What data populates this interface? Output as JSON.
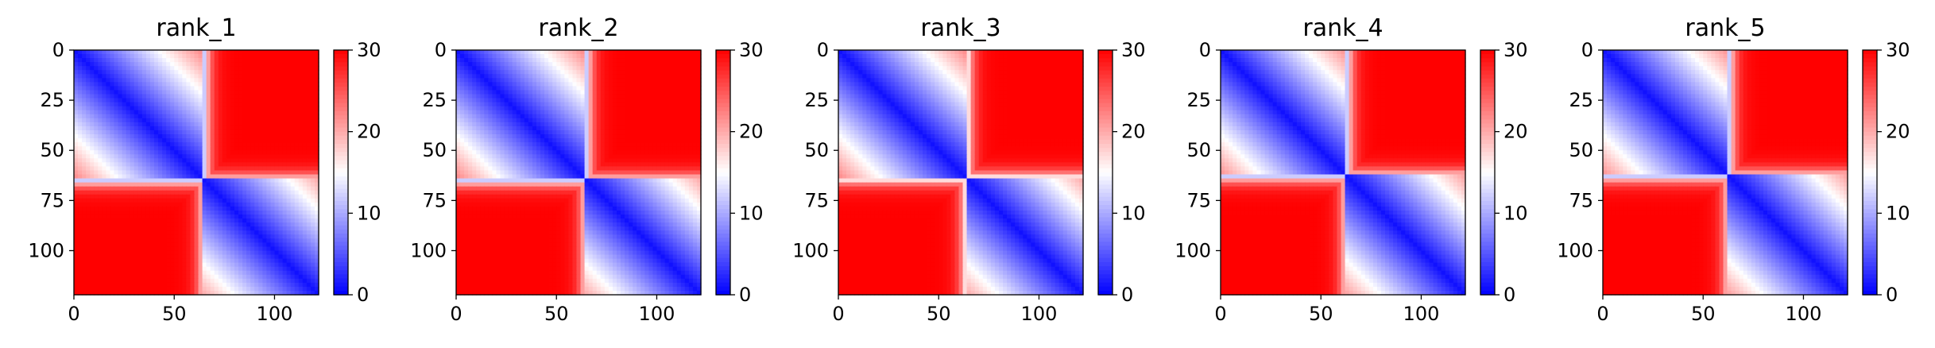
{
  "chart_data": [
    {
      "type": "heatmap",
      "title": "rank_1",
      "n": 122,
      "boundary": 65,
      "xlim": [
        0,
        122
      ],
      "ylim": [
        122,
        0
      ],
      "xticks": [
        0,
        50,
        100
      ],
      "yticks": [
        0,
        25,
        50,
        75,
        100
      ],
      "colorbar": {
        "min": 0,
        "max": 30,
        "ticks": [
          0,
          10,
          20,
          30
        ]
      },
      "colormap": [
        "#0000ff",
        "#ffffff",
        "#ff0000"
      ]
    },
    {
      "type": "heatmap",
      "title": "rank_2",
      "n": 122,
      "boundary": 65,
      "xlim": [
        0,
        122
      ],
      "ylim": [
        122,
        0
      ],
      "xticks": [
        0,
        50,
        100
      ],
      "yticks": [
        0,
        25,
        50,
        75,
        100
      ],
      "colorbar": {
        "min": 0,
        "max": 30,
        "ticks": [
          0,
          10,
          20,
          30
        ]
      },
      "colormap": [
        "#0000ff",
        "#ffffff",
        "#ff0000"
      ]
    },
    {
      "type": "heatmap",
      "title": "rank_3",
      "n": 122,
      "boundary": 64,
      "xlim": [
        0,
        122
      ],
      "ylim": [
        122,
        0
      ],
      "xticks": [
        0,
        50,
        100
      ],
      "yticks": [
        0,
        25,
        50,
        75,
        100
      ],
      "colorbar": {
        "min": 0,
        "max": 30,
        "ticks": [
          0,
          10,
          20,
          30
        ]
      },
      "colormap": [
        "#0000ff",
        "#ffffff",
        "#ff0000"
      ]
    },
    {
      "type": "heatmap",
      "title": "rank_4",
      "n": 122,
      "boundary": 63,
      "xlim": [
        0,
        122
      ],
      "ylim": [
        122,
        0
      ],
      "xticks": [
        0,
        50,
        100
      ],
      "yticks": [
        0,
        25,
        50,
        75,
        100
      ],
      "colorbar": {
        "min": 0,
        "max": 30,
        "ticks": [
          0,
          10,
          20,
          30
        ]
      },
      "colormap": [
        "#0000ff",
        "#ffffff",
        "#ff0000"
      ]
    },
    {
      "type": "heatmap",
      "title": "rank_5",
      "n": 122,
      "boundary": 63,
      "xlim": [
        0,
        122
      ],
      "ylim": [
        122,
        0
      ],
      "xticks": [
        0,
        50,
        100
      ],
      "yticks": [
        0,
        25,
        50,
        75,
        100
      ],
      "colorbar": {
        "min": 0,
        "max": 30,
        "ticks": [
          0,
          10,
          20,
          30
        ]
      },
      "colormap": [
        "#0000ff",
        "#ffffff",
        "#ff0000"
      ]
    }
  ]
}
